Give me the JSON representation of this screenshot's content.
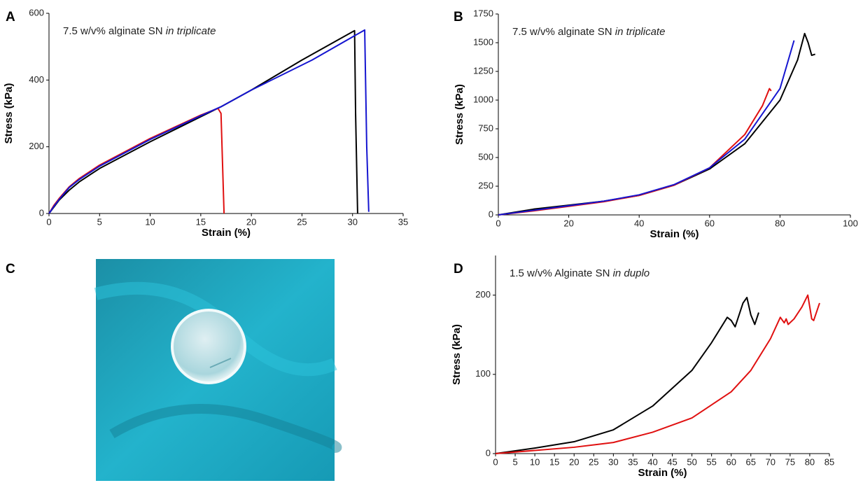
{
  "chart_data": [
    {
      "type": "line",
      "panel_label": "A",
      "annotation": "7.5 w/v% alginate SN",
      "annotation_italic": "in triplicate",
      "xlabel": "Strain (%)",
      "ylabel": "Stress (kPa)",
      "xlim": [
        0,
        35
      ],
      "ylim": [
        0,
        600
      ],
      "xticks": [
        0,
        5,
        10,
        15,
        20,
        25,
        30,
        35
      ],
      "yticks": [
        0,
        200,
        400,
        600
      ],
      "series": [
        {
          "color": "#000000",
          "x": [
            0,
            0.5,
            1,
            2,
            3,
            5,
            10,
            15,
            17,
            20,
            25,
            30.2,
            30.3,
            30.5
          ],
          "values": [
            0,
            20,
            40,
            70,
            95,
            135,
            215,
            290,
            320,
            370,
            460,
            548,
            300,
            0
          ]
        },
        {
          "color": "#e01010",
          "x": [
            0,
            0.5,
            1,
            2,
            3,
            5,
            10,
            15,
            16.7,
            17,
            17.2,
            17.3
          ],
          "values": [
            0,
            25,
            45,
            80,
            105,
            145,
            225,
            295,
            315,
            300,
            100,
            0
          ]
        },
        {
          "color": "#1515d0",
          "x": [
            0,
            0.5,
            1,
            2,
            3,
            5,
            10,
            15,
            17,
            20,
            26,
            31.2,
            31.4,
            31.6
          ],
          "values": [
            0,
            22,
            42,
            78,
            102,
            142,
            222,
            293,
            320,
            370,
            460,
            550,
            200,
            5
          ]
        }
      ]
    },
    {
      "type": "line",
      "panel_label": "B",
      "annotation": "7.5 w/v% alginate SN",
      "annotation_italic": "in triplicate",
      "xlabel": "Strain (%)",
      "ylabel": "Stress (kPa)",
      "xlim": [
        0,
        100
      ],
      "ylim": [
        0,
        1750
      ],
      "xticks": [
        0,
        20,
        40,
        60,
        80,
        100
      ],
      "yticks": [
        0,
        250,
        500,
        750,
        1000,
        1250,
        1500,
        1750
      ],
      "series": [
        {
          "color": "#000000",
          "x": [
            0,
            10,
            20,
            30,
            40,
            50,
            60,
            70,
            80,
            85,
            87,
            88,
            89,
            90
          ],
          "values": [
            0,
            50,
            85,
            120,
            170,
            260,
            400,
            620,
            1000,
            1350,
            1580,
            1500,
            1390,
            1400
          ]
        },
        {
          "color": "#e01010",
          "x": [
            0,
            10,
            20,
            30,
            40,
            50,
            60,
            70,
            75,
            77,
            77.5
          ],
          "values": [
            0,
            35,
            75,
            115,
            170,
            260,
            410,
            700,
            950,
            1100,
            1080
          ]
        },
        {
          "color": "#1515d0",
          "x": [
            0,
            10,
            20,
            30,
            40,
            50,
            60,
            70,
            80,
            84
          ],
          "values": [
            0,
            40,
            80,
            120,
            175,
            265,
            410,
            660,
            1100,
            1520
          ]
        }
      ]
    },
    {
      "type": "line",
      "panel_label": "D",
      "annotation": "1.5 w/v% Alginate SN",
      "annotation_italic": "in duplo",
      "xlabel": "Strain (%)",
      "ylabel": "Stress (kPa)",
      "xlim": [
        0,
        85
      ],
      "ylim": [
        0,
        250
      ],
      "xticks": [
        0,
        5,
        10,
        15,
        20,
        25,
        30,
        35,
        40,
        45,
        50,
        55,
        60,
        65,
        70,
        75,
        80,
        85
      ],
      "yticks": [
        0,
        100,
        200
      ],
      "series": [
        {
          "color": "#000000",
          "x": [
            0,
            10,
            20,
            30,
            40,
            50,
            55,
            59,
            60,
            61,
            63,
            64,
            65,
            66,
            67
          ],
          "values": [
            0,
            7,
            15,
            30,
            60,
            105,
            140,
            172,
            168,
            160,
            190,
            197,
            175,
            163,
            178
          ]
        },
        {
          "color": "#e01010",
          "x": [
            0,
            10,
            20,
            30,
            40,
            50,
            60,
            65,
            70,
            72.5,
            73.5,
            74,
            74.5,
            76,
            78,
            79.5,
            80.5,
            81,
            82.5
          ],
          "values": [
            0,
            4,
            8,
            14,
            27,
            45,
            78,
            105,
            145,
            172,
            165,
            170,
            163,
            170,
            185,
            200,
            170,
            168,
            190
          ]
        }
      ]
    }
  ],
  "photo": {
    "panel_label": "C"
  }
}
